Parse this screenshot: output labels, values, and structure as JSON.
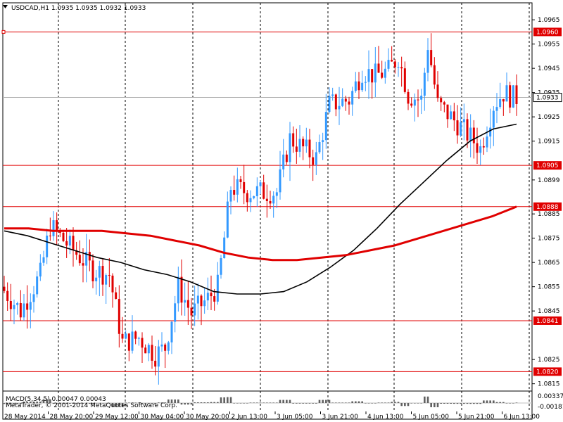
{
  "chart_data": {
    "type": "candlestick",
    "header": {
      "symbol": "USDCAD,H1",
      "ohlc": "1.0935 1.0935 1.0932 1.0933"
    },
    "ylim": [
      1.0812,
      1.0972
    ],
    "y_ticks": [
      "1.0965",
      "1.0955",
      "1.0945",
      "1.0935",
      "1.0925",
      "1.0915",
      "1.0899",
      "1.0885",
      "1.0875",
      "1.0865",
      "1.0855",
      "1.0845",
      "1.0825",
      "1.0815"
    ],
    "x_ticks": [
      "28 May 2014",
      "28 May 20:00",
      "29 May 12:00",
      "30 May 04:00",
      "30 May 20:00",
      "2 Jun 13:00",
      "3 Jun 05:00",
      "3 Jun 21:00",
      "4 Jun 13:00",
      "5 Jun 05:00",
      "5 Jun 21:00",
      "6 Jun 13:00"
    ],
    "levels": [
      {
        "label": "1.0960",
        "value": 1.096,
        "color": "#e00000"
      },
      {
        "label": "1.0905",
        "value": 1.0905,
        "color": "#e00000"
      },
      {
        "label": "1.0888",
        "value": 1.0888,
        "color": "#e00000"
      },
      {
        "label": "1.0841",
        "value": 1.0841,
        "color": "#e00000"
      },
      {
        "label": "1.0820",
        "value": 1.082,
        "color": "#e00000"
      }
    ],
    "current_price": {
      "label": "1.0933",
      "value": 1.0933
    },
    "candle_count": 157,
    "anchors": [
      [
        0,
        1.0855
      ],
      [
        6,
        1.0845
      ],
      [
        12,
        1.086
      ],
      [
        15,
        1.088
      ],
      [
        22,
        1.087
      ],
      [
        28,
        1.0862
      ],
      [
        33,
        1.086
      ],
      [
        37,
        1.0832
      ],
      [
        42,
        1.0834
      ],
      [
        47,
        1.0827
      ],
      [
        50,
        1.083
      ],
      [
        54,
        1.0855
      ],
      [
        58,
        1.0844
      ],
      [
        63,
        1.085
      ],
      [
        66,
        1.0855
      ],
      [
        68,
        1.0875
      ],
      [
        70,
        1.0896
      ],
      [
        75,
        1.0894
      ],
      [
        84,
        1.0894
      ],
      [
        88,
        1.0916
      ],
      [
        92,
        1.0912
      ],
      [
        96,
        1.0908
      ],
      [
        100,
        1.093
      ],
      [
        106,
        1.0932
      ],
      [
        110,
        1.0944
      ],
      [
        114,
        1.0942
      ],
      [
        118,
        1.0944
      ],
      [
        121,
        1.095
      ],
      [
        124,
        1.0934
      ],
      [
        128,
        1.0932
      ],
      [
        130,
        1.0955
      ],
      [
        133,
        1.093
      ],
      [
        137,
        1.0925
      ],
      [
        142,
        1.0918
      ],
      [
        146,
        1.0912
      ],
      [
        150,
        1.093
      ],
      [
        153,
        1.0935
      ],
      [
        156,
        1.0933
      ]
    ],
    "series": [
      {
        "name": "",
        "values": [
          1.0878,
          1.0876,
          1.0873,
          1.087,
          1.0867,
          1.0865,
          1.0862,
          1.086,
          1.0857,
          1.0853,
          1.0852,
          1.0852,
          1.0853,
          1.0857,
          1.0863,
          1.087,
          1.0879,
          1.0889,
          1.0898,
          1.0907,
          1.0915,
          1.092,
          1.0922
        ],
        "color": "#000000"
      },
      {
        "name": "",
        "values": [
          1.0879,
          1.0879,
          1.0878,
          1.0878,
          1.0878,
          1.0877,
          1.0876,
          1.0874,
          1.0872,
          1.0869,
          1.0867,
          1.0866,
          1.0866,
          1.0867,
          1.0868,
          1.087,
          1.0872,
          1.0875,
          1.0878,
          1.0881,
          1.0884,
          1.0888
        ],
        "color": "#e00000"
      }
    ],
    "indicator": {
      "label": "MACD(5,34,5) 0.00047 0.00043",
      "y_ticks": [
        "0.00337",
        "-0.00181"
      ],
      "copyright": "MetaTrader, © 2001-2014 MetaQuotes Software Corp."
    },
    "colors": {
      "bull": "#3399ff",
      "bear": "#e00000",
      "grid": "#000000",
      "level": "#e00000"
    }
  }
}
